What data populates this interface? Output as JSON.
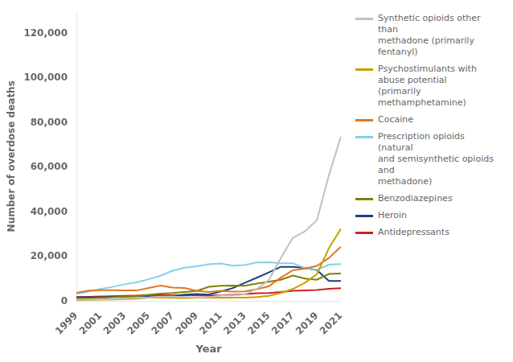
{
  "chart_data": {
    "type": "line",
    "x": [
      1999,
      2000,
      2001,
      2002,
      2003,
      2004,
      2005,
      2006,
      2007,
      2008,
      2009,
      2010,
      2011,
      2012,
      2013,
      2014,
      2015,
      2016,
      2017,
      2018,
      2019,
      2020,
      2021
    ],
    "series": [
      {
        "name": "Synthetic opioids other than\nmethadone (primarily fentanyl)",
        "color": "#c0c0c0",
        "values": [
          730,
          782,
          949,
          1041,
          1371,
          1666,
          1742,
          2088,
          2213,
          1904,
          1671,
          1729,
          2666,
          2628,
          3105,
          5544,
          9580,
          19413,
          28466,
          31335,
          36359,
          56516,
          73838
        ]
      },
      {
        "name": "Psychostimulants with abuse potential\n(primarily methamphetamine)",
        "color": "#c8a000",
        "values": [
          547,
          627,
          731,
          882,
          1040,
          1206,
          1648,
          1758,
          1540,
          1498,
          1551,
          1557,
          1635,
          1630,
          1699,
          1951,
          2494,
          3728,
          5526,
          8318,
          12165,
          23837,
          32537
        ]
      },
      {
        "name": "Cocaine",
        "color": "#e07820",
        "values": [
          3822,
          4782,
          5017,
          5001,
          4897,
          4864,
          5996,
          7044,
          6163,
          5965,
          4753,
          4183,
          4681,
          4404,
          4496,
          5415,
          6784,
          10619,
          13942,
          14666,
          15883,
          19447,
          24486
        ]
      },
      {
        "name": "Prescription opioids (natural\nand semisynthetic opioids and\nmethadone)",
        "color": "#87ceeb",
        "values": [
          3442,
          4400,
          5528,
          6479,
          7650,
          8541,
          9913,
          11484,
          13723,
          15060,
          15759,
          16651,
          17005,
          16007,
          16235,
          17465,
          17536,
          17087,
          17050,
          14975,
          14139,
          16416,
          16706
        ]
      },
      {
        "name": "Benzodiazepines",
        "color": "#808000",
        "values": [
          1135,
          1273,
          1556,
          1882,
          2216,
          2437,
          2907,
          3457,
          3723,
          4175,
          4672,
          6497,
          6959,
          7024,
          6967,
          7945,
          8791,
          9711,
          11537,
          10213,
          9711,
          12290,
          12499
        ]
      },
      {
        "name": "Heroin",
        "color": "#1a4080",
        "values": [
          1960,
          1842,
          1779,
          2089,
          2080,
          1878,
          2009,
          2088,
          2399,
          3041,
          3278,
          3036,
          4397,
          5925,
          8260,
          10574,
          12989,
          15469,
          15482,
          14975,
          14019,
          9173,
          9173
        ]
      },
      {
        "name": "Antidepressants",
        "color": "#cc2020",
        "values": [
          1749,
          1990,
          2186,
          2285,
          2475,
          2598,
          2668,
          2726,
          2755,
          2734,
          2637,
          2535,
          2720,
          2937,
          3152,
          3682,
          3757,
          4149,
          4705,
          4933,
          5096,
          5597,
          5859
        ]
      }
    ],
    "xlabel": "Year",
    "ylabel": "Number of overdose deaths",
    "xlim": [
      1999,
      2021
    ],
    "xticks": [
      1999,
      2001,
      2003,
      2005,
      2007,
      2009,
      2011,
      2013,
      2015,
      2017,
      2019,
      2021
    ],
    "ylim": [
      0,
      130000
    ],
    "yticks": [
      0,
      {
        "value": 20000,
        "label": "20,000"
      },
      {
        "value": 40000,
        "label": "40,000"
      },
      {
        "value": 60000,
        "label": "60,000"
      },
      {
        "value": 80000,
        "label": "80,000"
      },
      {
        "value": 100000,
        "label": "100,000"
      },
      {
        "value": 120000,
        "label": "120,000"
      }
    ],
    "grid": false
  }
}
